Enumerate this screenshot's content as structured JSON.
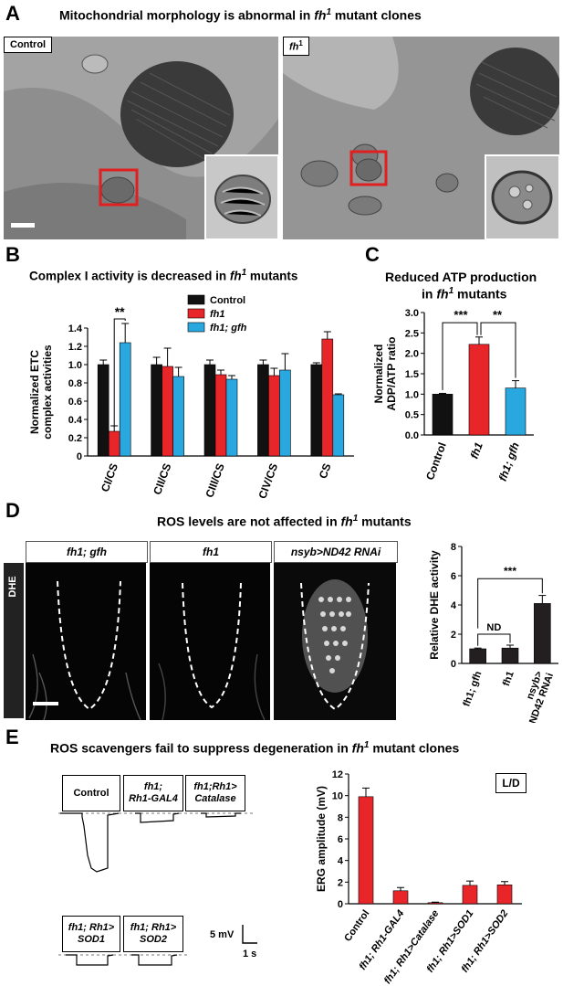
{
  "panels": {
    "A": {
      "label": "A",
      "title_pre": "Mitochondrial morphology is abnormal in ",
      "title_gene": "fh",
      "title_sup": "1",
      "title_post": " mutant clones",
      "img_left_tag": "Control",
      "img_right_tag_gene": "fh",
      "img_right_tag_sup": "1"
    },
    "B": {
      "label": "B",
      "title_pre": "Complex I activity is decreased in ",
      "title_gene": "fh",
      "title_sup": "1",
      "title_post": " mutants"
    },
    "C": {
      "label": "C",
      "title_line1": "Reduced ATP production",
      "title_line2_pre": "in ",
      "title_line2_gene": "fh",
      "title_line2_sup": "1",
      "title_line2_post": " mutants"
    },
    "D": {
      "label": "D",
      "title_pre": "ROS levels are not affected in ",
      "title_gene": "fh",
      "title_sup": "1",
      "title_post": " mutants",
      "side_label": "DHE",
      "col1": "fh1; gfh",
      "col2": "fh1",
      "col3": "nsyb>ND42 RNAi"
    },
    "E": {
      "label": "E",
      "title_pre": "ROS scavengers fail to suppress degeneration in ",
      "title_gene": "fh",
      "title_sup": "1",
      "title_post": " mutant clones",
      "box_control": "Control",
      "box_gal4_l1": "fh1;",
      "box_gal4_l2": "Rh1-GAL4",
      "box_cat_l1": "fh1;Rh1>",
      "box_cat_l2": "Catalase",
      "box_sod1_l1": "fh1; Rh1>",
      "box_sod1_l2": "SOD1",
      "box_sod2_l1": "fh1; Rh1>",
      "box_sod2_l2": "SOD2",
      "scale_mv": "5 mV",
      "scale_s": "1 s",
      "ld_label": "L/D"
    }
  },
  "colors": {
    "control": "#111111",
    "fh1": "#e8262a",
    "rescue": "#29a8e0",
    "erg": "#e8262a"
  },
  "chart_data": [
    {
      "type": "bar",
      "panel": "B",
      "ylabel": "Normalized ETC complex activities",
      "ylim": [
        0,
        1.4
      ],
      "yticks": [
        "0",
        "0.2",
        "0.4",
        "0.6",
        "0.8",
        "1.0",
        "1.2",
        "1.4"
      ],
      "categories": [
        "CI/CS",
        "CII/CS",
        "CIII/CS",
        "CIV/CS",
        "CS"
      ],
      "series": [
        {
          "name": "Control",
          "values": [
            1.0,
            1.0,
            1.0,
            1.0,
            1.0
          ],
          "errors": [
            0.05,
            0.08,
            0.05,
            0.05,
            0.02
          ]
        },
        {
          "name": "fh1",
          "values": [
            0.27,
            0.98,
            0.89,
            0.88,
            1.28
          ],
          "errors": [
            0.06,
            0.2,
            0.05,
            0.08,
            0.08
          ]
        },
        {
          "name": "fh1; gfh",
          "values": [
            1.24,
            0.87,
            0.84,
            0.94,
            0.67
          ],
          "errors": [
            0.21,
            0.1,
            0.04,
            0.18,
            0.01
          ]
        }
      ],
      "annotation": "**"
    },
    {
      "type": "bar",
      "panel": "C",
      "ylabel": "Normalized ADP/ATP ratio",
      "ylim": [
        0,
        3.0
      ],
      "yticks": [
        "0.0",
        "0.5",
        "1.0",
        "1.5",
        "2.0",
        "2.5",
        "3.0"
      ],
      "categories": [
        "Control",
        "fh1",
        "fh1; gfh"
      ],
      "values": [
        1.0,
        2.22,
        1.15
      ],
      "errors": [
        0.02,
        0.18,
        0.18
      ],
      "annotations": [
        "***",
        "**"
      ]
    },
    {
      "type": "bar",
      "panel": "D",
      "ylabel": "Relative DHE activity",
      "ylim": [
        0,
        8
      ],
      "yticks": [
        "0",
        "2",
        "4",
        "6",
        "8"
      ],
      "categories": [
        "fh1; gfh",
        "fh1",
        "nsyb> ND42 RNAi"
      ],
      "values": [
        1.0,
        1.05,
        4.1
      ],
      "errors": [
        0.05,
        0.2,
        0.55
      ],
      "annotations": [
        "ND",
        "***"
      ]
    },
    {
      "type": "bar",
      "panel": "E",
      "ylabel": "ERG amplitude (mV)",
      "ylim": [
        0,
        12
      ],
      "yticks": [
        "0",
        "2",
        "4",
        "6",
        "8",
        "10",
        "12"
      ],
      "categories": [
        "Control",
        "fh1; Rh1-GAL4",
        "fh1; Rh1>Catalase",
        "fh1; Rh1>SOD1",
        "fh1; Rh1>SOD2"
      ],
      "values": [
        9.9,
        1.2,
        0.1,
        1.7,
        1.75
      ],
      "errors": [
        0.8,
        0.3,
        0.05,
        0.4,
        0.3
      ]
    }
  ]
}
